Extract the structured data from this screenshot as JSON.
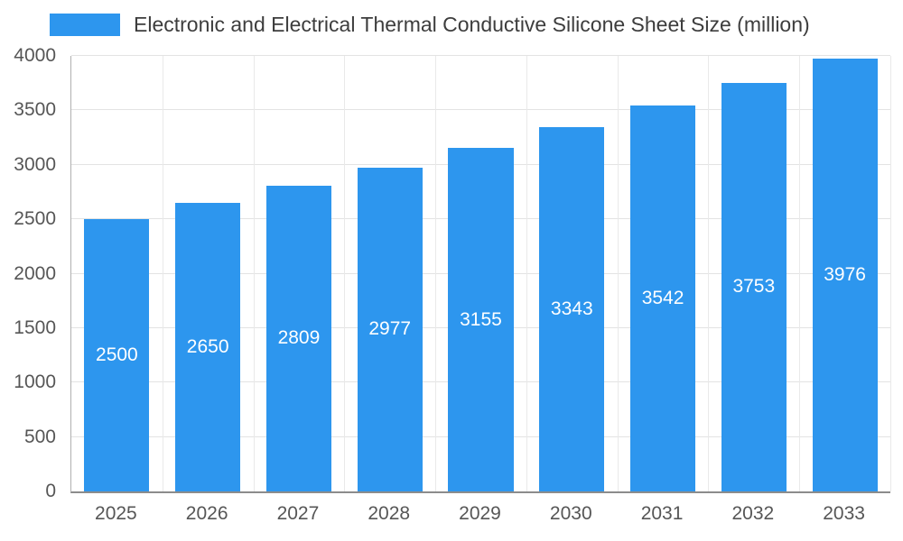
{
  "legend": {
    "label": "Electronic and Electrical Thermal Conductive Silicone Sheet Size (million)",
    "swatch_color": "#2D96EE"
  },
  "chart_data": {
    "type": "bar",
    "title": "Electronic and Electrical Thermal Conductive Silicone Sheet Size (million)",
    "categories": [
      "2025",
      "2026",
      "2027",
      "2028",
      "2029",
      "2030",
      "2031",
      "2032",
      "2033"
    ],
    "values": [
      2500,
      2650,
      2809,
      2977,
      3155,
      3343,
      3542,
      3753,
      3976
    ],
    "xlabel": "",
    "ylabel": "",
    "ylim": [
      0,
      4000
    ],
    "ytick_interval": 500,
    "ytick_labels": [
      "0",
      "500",
      "1000",
      "1500",
      "2000",
      "2500",
      "3000",
      "3500",
      "4000"
    ],
    "grid": true,
    "legend_position": "top-left",
    "bar_color": "#2D96EE",
    "value_label_color": "#ffffff",
    "value_labels_inside_bars": true
  }
}
